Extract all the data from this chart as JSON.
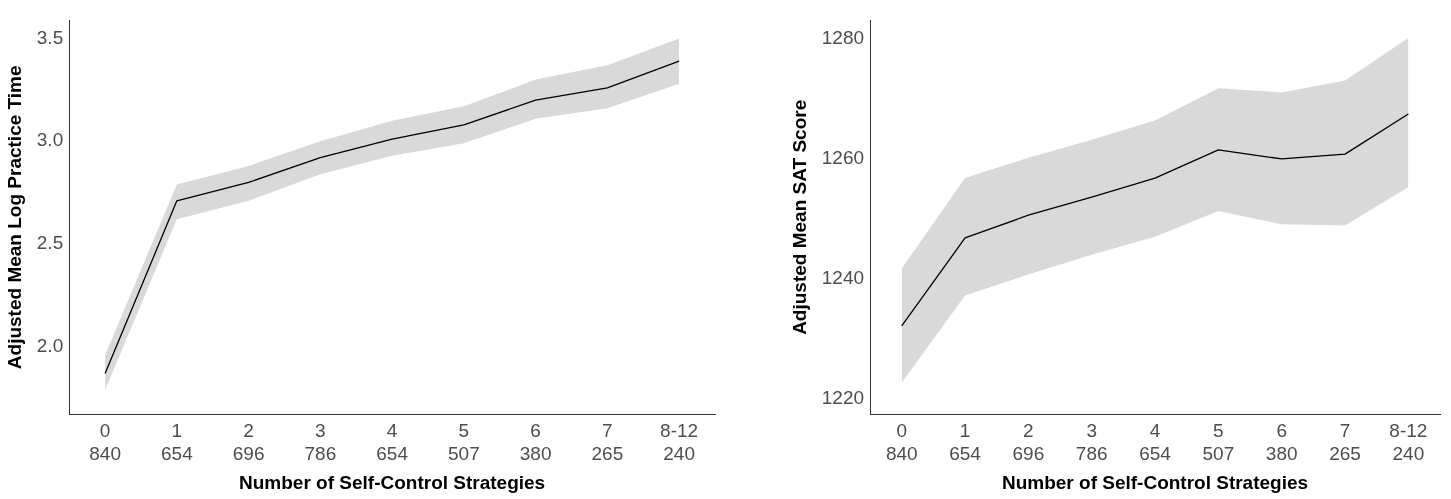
{
  "chart_data": [
    {
      "type": "line",
      "xlabel": "Number of Self-Control Strategies",
      "ylabel": "Adjusted Mean Log Practice Time",
      "categories": [
        "0\n840",
        "1\n654",
        "2\n696",
        "3\n786",
        "4\n654",
        "5\n507",
        "6\n380",
        "7\n265",
        "8-12\n240"
      ],
      "series": [
        {
          "color": "#000000",
          "values": [
            1.87,
            2.71,
            2.8,
            2.92,
            3.01,
            3.08,
            3.2,
            3.26,
            3.39
          ],
          "lower": [
            1.79,
            2.62,
            2.71,
            2.84,
            2.93,
            2.99,
            3.11,
            3.16,
            3.28
          ],
          "upper": [
            1.96,
            2.79,
            2.88,
            3.0,
            3.1,
            3.17,
            3.3,
            3.37,
            3.5
          ]
        }
      ],
      "ylim": [
        1.67,
        3.59
      ],
      "yticks": [
        {
          "value": 2.0,
          "label": "2.0"
        },
        {
          "value": 2.5,
          "label": "2.5"
        },
        {
          "value": 3.0,
          "label": "3.0"
        },
        {
          "value": 3.5,
          "label": "3.5"
        }
      ],
      "grid": false,
      "legend": false
    },
    {
      "type": "line",
      "xlabel": "Number of Self-Control Strategies",
      "ylabel": "Adjusted Mean SAT Score",
      "categories": [
        "0\n840",
        "1\n654",
        "2\n696",
        "3\n786",
        "4\n654",
        "5\n507",
        "6\n380",
        "7\n265",
        "8-12\n240"
      ],
      "series": [
        {
          "color": "#000000",
          "values": [
            1232.1,
            1246.8,
            1250.6,
            1253.6,
            1256.8,
            1261.5,
            1260.0,
            1260.8,
            1267.5
          ],
          "lower": [
            1222.6,
            1237.2,
            1240.7,
            1244.0,
            1247.0,
            1251.3,
            1249.1,
            1248.9,
            1255.3
          ],
          "upper": [
            1241.7,
            1256.8,
            1260.2,
            1263.2,
            1266.4,
            1271.8,
            1271.1,
            1273.1,
            1280.2
          ]
        }
      ],
      "ylim": [
        1217.3,
        1283.2
      ],
      "yticks": [
        1220,
        1240,
        1260,
        1280
      ],
      "grid": false,
      "legend": false
    }
  ]
}
